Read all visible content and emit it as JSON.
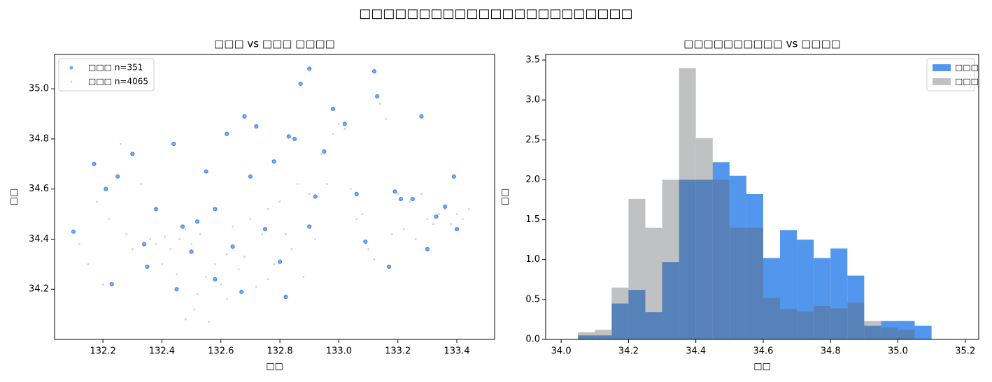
{
  "title": "□□□□□□□□□□□□□□□□□□□□□□□",
  "chart_data": [
    {
      "type": "scatter",
      "title": "□□□ vs □□□ □□□□",
      "xlabel": "□□",
      "ylabel": "□□",
      "xlim": [
        132.036,
        133.528
      ],
      "ylim": [
        34.0,
        35.137
      ],
      "xticks": [
        132.2,
        132.4,
        132.6,
        132.8,
        {
          "value": 133.0,
          "label": "133.0"
        },
        133.2,
        133.4
      ],
      "yticks": [
        34.2,
        34.4,
        34.6,
        34.8,
        {
          "value": 35.0,
          "label": "35.0"
        }
      ],
      "legend": "upper-left",
      "series": [
        {
          "name": "□□□ n=351",
          "color": "#1a73e8",
          "x": [
            132.1,
            132.17,
            132.21,
            132.23,
            132.3,
            132.34,
            132.38,
            132.44,
            132.47,
            132.5,
            132.52,
            132.55,
            132.58,
            132.62,
            132.64,
            132.68,
            132.7,
            132.72,
            132.75,
            132.78,
            132.8,
            132.83,
            132.85,
            132.87,
            132.9,
            132.92,
            132.95,
            132.98,
            133.02,
            133.06,
            133.09,
            133.12,
            133.13,
            133.17,
            133.19,
            133.21,
            133.25,
            133.28,
            133.3,
            133.33,
            133.36,
            133.39,
            133.4,
            132.58,
            132.45,
            132.67,
            132.82,
            132.35,
            132.9,
            132.25
          ],
          "values": [
            34.43,
            34.7,
            34.6,
            34.22,
            34.74,
            34.38,
            34.52,
            34.78,
            34.45,
            34.35,
            34.47,
            34.67,
            34.24,
            34.82,
            34.37,
            34.89,
            34.65,
            34.85,
            34.44,
            34.71,
            34.31,
            34.81,
            34.8,
            35.02,
            34.45,
            34.57,
            34.75,
            34.92,
            34.86,
            34.58,
            34.39,
            35.07,
            34.97,
            34.29,
            34.59,
            34.56,
            34.56,
            34.89,
            34.36,
            34.49,
            34.53,
            34.65,
            34.44,
            34.52,
            34.2,
            34.19,
            34.17,
            34.29,
            35.08,
            34.65
          ]
        },
        {
          "name": "□□□ n=4065",
          "color": "#5f6368",
          "x": [
            132.12,
            132.15,
            132.18,
            132.2,
            132.22,
            132.26,
            132.28,
            132.3,
            132.33,
            132.36,
            132.38,
            132.4,
            132.41,
            132.43,
            132.45,
            132.46,
            132.48,
            132.5,
            132.51,
            132.53,
            132.55,
            132.56,
            132.58,
            132.6,
            132.62,
            132.64,
            132.66,
            132.68,
            132.7,
            132.72,
            132.74,
            132.76,
            132.78,
            132.8,
            132.82,
            132.84,
            132.86,
            132.88,
            132.9,
            132.92,
            132.94,
            132.96,
            132.98,
            133.0,
            133.02,
            133.04,
            133.06,
            133.08,
            133.1,
            133.12,
            133.14,
            133.16,
            133.18,
            133.2,
            133.22,
            133.24,
            133.26,
            133.28,
            133.3,
            133.32,
            133.34,
            133.36,
            133.38,
            133.4,
            133.42,
            133.44,
            132.52,
            132.48,
            132.62,
            132.76
          ],
          "values": [
            34.38,
            34.3,
            34.55,
            34.22,
            34.48,
            34.78,
            34.42,
            34.36,
            34.62,
            34.4,
            34.38,
            34.3,
            34.41,
            34.36,
            34.26,
            34.4,
            34.44,
            34.38,
            34.12,
            34.42,
            34.25,
            34.07,
            34.3,
            34.22,
            34.34,
            34.45,
            34.28,
            34.33,
            34.48,
            34.21,
            34.42,
            34.52,
            34.3,
            34.55,
            34.42,
            34.36,
            34.62,
            34.25,
            34.58,
            34.4,
            34.74,
            34.62,
            34.82,
            34.86,
            34.84,
            34.6,
            34.48,
            34.5,
            34.36,
            34.32,
            34.94,
            34.88,
            34.42,
            34.58,
            34.44,
            34.55,
            34.4,
            34.58,
            34.48,
            34.46,
            34.5,
            34.52,
            34.46,
            34.5,
            34.48,
            34.52,
            34.18,
            34.08,
            34.16,
            34.24
          ]
        }
      ]
    },
    {
      "type": "histogram",
      "title": "□□□□□□□□□□ vs □□□□",
      "xlabel": "□□",
      "ylabel": "□□",
      "xlim": [
        33.954,
        35.24
      ],
      "ylim": [
        0,
        3.57
      ],
      "xticks": [
        {
          "value": 34.0,
          "label": "34.0"
        },
        34.2,
        34.4,
        34.6,
        34.8,
        {
          "value": 35.0,
          "label": "35.0"
        },
        35.2
      ],
      "yticks": [
        {
          "value": 0,
          "label": "0.0"
        },
        0.5,
        {
          "value": 1,
          "label": "1.0"
        },
        1.5,
        {
          "value": 2,
          "label": "2.0"
        },
        2.5,
        {
          "value": 3,
          "label": "3.0"
        },
        3.5
      ],
      "legend": "upper-right",
      "bins": [
        34.05,
        34.1,
        34.15,
        34.2,
        34.25,
        34.3,
        34.35,
        34.4,
        34.45,
        34.5,
        34.55,
        34.6,
        34.65,
        34.7,
        34.75,
        34.8,
        34.85,
        34.9,
        34.95,
        35.0,
        35.05,
        35.1
      ],
      "series": [
        {
          "name": "□□□",
          "color": "#1a73e8",
          "opacity": 0.75,
          "values": [
            0.05,
            0.05,
            0.45,
            0.62,
            0.34,
            0.97,
            2.0,
            2.0,
            2.22,
            2.05,
            1.82,
            1.02,
            1.37,
            1.25,
            1.02,
            1.14,
            0.8,
            0.17,
            0.23,
            0.23,
            0.17
          ]
        },
        {
          "name": "□□□",
          "color": "#5f6368",
          "opacity": 0.4,
          "values": [
            0.09,
            0.12,
            0.65,
            1.76,
            1.4,
            2.0,
            3.4,
            2.52,
            2.0,
            1.4,
            1.4,
            0.52,
            0.38,
            0.35,
            0.42,
            0.39,
            0.46,
            0.23,
            0.15,
            0.12,
            0
          ]
        }
      ]
    }
  ]
}
